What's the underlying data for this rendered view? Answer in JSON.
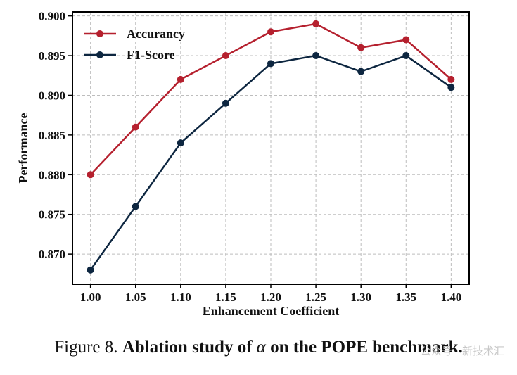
{
  "chart_data": {
    "type": "line",
    "title": "",
    "xlabel": "Enhancement Coefficient",
    "ylabel": "Performance",
    "x": [
      1.0,
      1.05,
      1.1,
      1.15,
      1.2,
      1.25,
      1.3,
      1.35,
      1.4
    ],
    "x_tick_labels": [
      "1.00",
      "1.05",
      "1.10",
      "1.15",
      "1.20",
      "1.25",
      "1.30",
      "1.35",
      "1.40"
    ],
    "y_ticks": [
      0.87,
      0.875,
      0.88,
      0.885,
      0.89,
      0.895,
      0.9
    ],
    "y_tick_labels": [
      "0.870",
      "0.875",
      "0.880",
      "0.885",
      "0.890",
      "0.895",
      "0.900"
    ],
    "xlim": [
      0.98,
      1.42
    ],
    "ylim": [
      0.8662,
      0.9005
    ],
    "grid": true,
    "legend_position": "top-left",
    "series": [
      {
        "name": "Accurancy",
        "color": "#b5202e",
        "values": [
          0.88,
          0.886,
          0.892,
          0.895,
          0.898,
          0.899,
          0.896,
          0.897,
          0.892
        ]
      },
      {
        "name": "F1-Score",
        "color": "#0d2640",
        "values": [
          0.868,
          0.876,
          0.884,
          0.889,
          0.894,
          0.895,
          0.893,
          0.895,
          0.891
        ]
      }
    ]
  },
  "caption": {
    "prefix": "Figure 8.",
    "bold_part": "Ablation study of",
    "alpha_symbol": "α",
    "bold_suffix": "on the POPE benchmark."
  },
  "watermark": "公众号 · 新技术汇"
}
